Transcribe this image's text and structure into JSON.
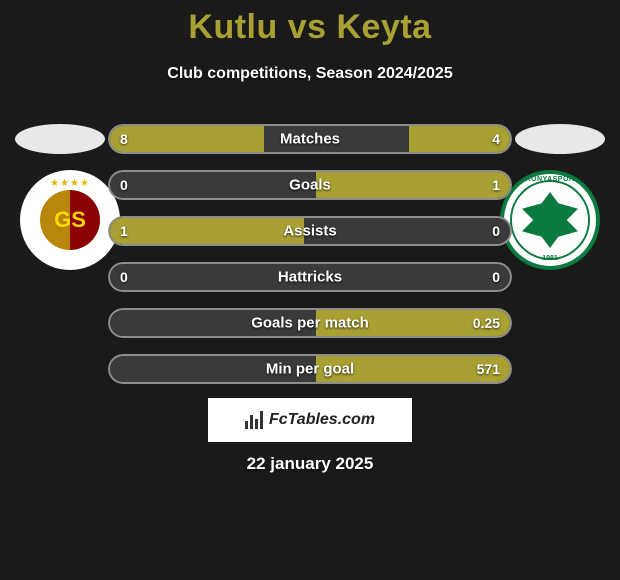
{
  "background_color": "#1a1a1a",
  "title": {
    "text": "Kutlu vs Keyta",
    "color": "#a8a032",
    "font_size": 34,
    "font_weight": 800
  },
  "subtitle": {
    "text": "Club competitions, Season 2024/2025",
    "color": "#ffffff",
    "font_size": 16
  },
  "bar_fill_color": "#a8a032",
  "bar_track_color": "#3a3a3a",
  "bar_border_color": "#8d8d8d",
  "bar_radius": 15,
  "stats": [
    {
      "label": "Matches",
      "left_val": "8",
      "right_val": "4",
      "left_pct": 38,
      "right_pct": 25
    },
    {
      "label": "Goals",
      "left_val": "0",
      "right_val": "1",
      "left_pct": 0,
      "right_pct": 48
    },
    {
      "label": "Assists",
      "left_val": "1",
      "right_val": "0",
      "left_pct": 48,
      "right_pct": 0
    },
    {
      "label": "Hattricks",
      "left_val": "0",
      "right_val": "0",
      "left_pct": 0,
      "right_pct": 0
    },
    {
      "label": "Goals per match",
      "left_val": "",
      "right_val": "0.25",
      "left_pct": 0,
      "right_pct": 48
    },
    {
      "label": "Min per goal",
      "left_val": "",
      "right_val": "571",
      "left_pct": 0,
      "right_pct": 48
    }
  ],
  "left_player": {
    "oval_color": "#e8e8e8",
    "club": "Galatasaray",
    "logo_bg": "#ffffff",
    "logo_primary": "#b8860b",
    "logo_secondary": "#8b0000",
    "logo_text": "GS",
    "stars": "★★★★"
  },
  "right_player": {
    "oval_color": "#e8e8e8",
    "club": "Konyaspor",
    "logo_bg": "#ffffff",
    "logo_primary": "#0b7a3e",
    "logo_text_top": "KONYASPOR",
    "logo_year": "1981"
  },
  "attribution": {
    "text": "FcTables.com",
    "bg": "#ffffff",
    "text_color": "#222222",
    "font_size": 16
  },
  "date": {
    "text": "22 january 2025",
    "color": "#ffffff",
    "font_size": 17
  }
}
